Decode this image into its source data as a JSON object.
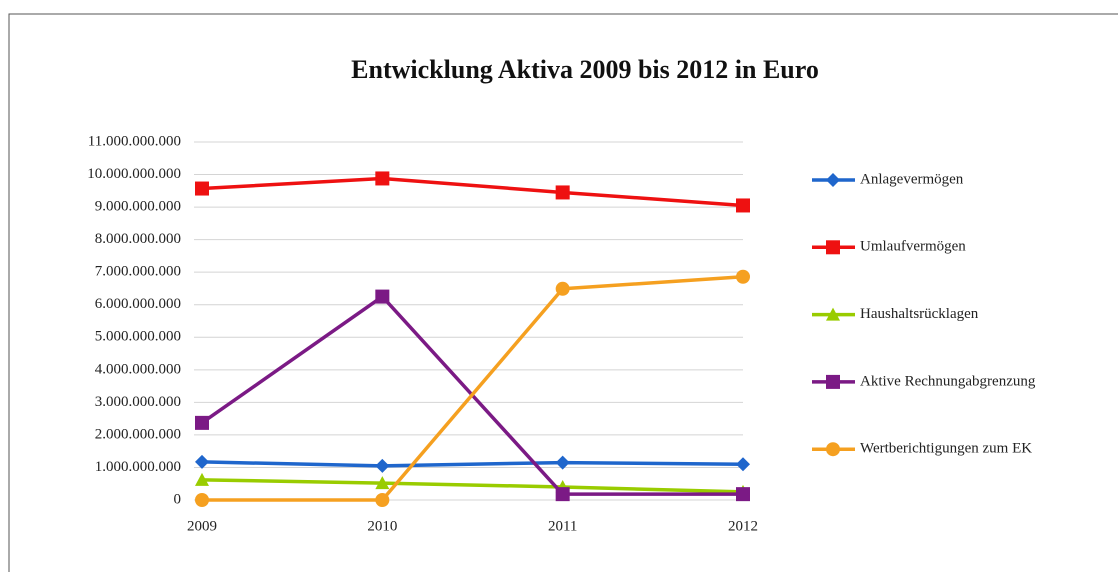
{
  "chart_data": {
    "type": "line",
    "title": "Entwicklung Aktiva 2009 bis 2012 in Euro",
    "categories": [
      "2009",
      "2010",
      "2011",
      "2012"
    ],
    "series": [
      {
        "name": "Anlagevermögen",
        "color": "#1f66cc",
        "marker": "diamond",
        "values": [
          1170000000,
          1050000000,
          1150000000,
          1100000000
        ]
      },
      {
        "name": "Umlaufvermögen",
        "color": "#ee1111",
        "marker": "square",
        "values": [
          9570000000,
          9880000000,
          9450000000,
          9050000000
        ]
      },
      {
        "name": "Haushaltsrücklagen",
        "color": "#99cc00",
        "marker": "triangle",
        "values": [
          620000000,
          520000000,
          400000000,
          250000000
        ]
      },
      {
        "name": "Aktive Rechnungabgrenzung",
        "color": "#7b1a85",
        "marker": "square",
        "values": [
          2370000000,
          6250000000,
          180000000,
          180000000
        ]
      },
      {
        "name": "Wertberichtigungen zum EK",
        "color": "#f5a020",
        "marker": "circle",
        "values": [
          0,
          0,
          6490000000,
          6860000000
        ]
      }
    ],
    "ylim": [
      0,
      11000000000
    ],
    "yticks": [
      0,
      {
        "value": 1000000000,
        "label": "1.000.000.000"
      },
      {
        "value": 2000000000,
        "label": "2.000.000.000"
      },
      {
        "value": 3000000000,
        "label": "3.000.000.000"
      },
      {
        "value": 4000000000,
        "label": "4.000.000.000"
      },
      {
        "value": 5000000000,
        "label": "5.000.000.000"
      },
      {
        "value": 6000000000,
        "label": "6.000.000.000"
      },
      {
        "value": 7000000000,
        "label": "7.000.000.000"
      },
      {
        "value": 8000000000,
        "label": "8.000.000.000"
      },
      {
        "value": 9000000000,
        "label": "9.000.000.000"
      },
      {
        "value": 10000000000,
        "label": "10.000.000.000"
      },
      {
        "value": 11000000000,
        "label": "11.000.000.000"
      }
    ],
    "grid": true,
    "legend": "right"
  }
}
